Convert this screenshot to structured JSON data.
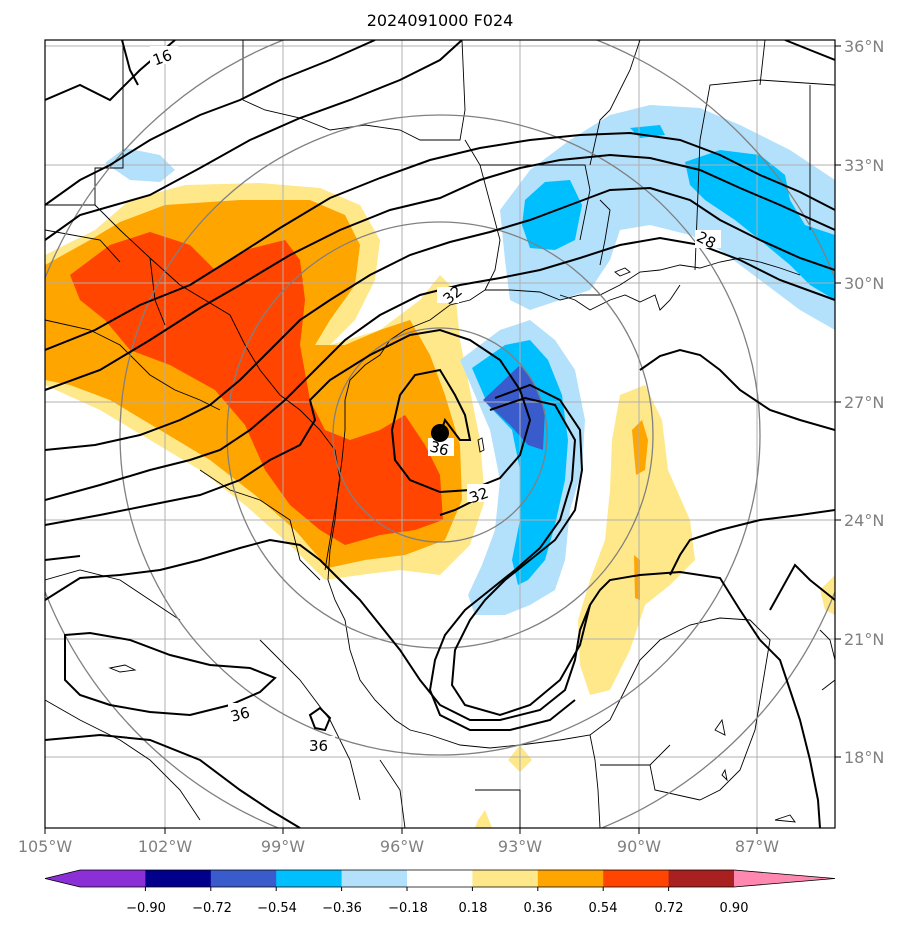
{
  "map": {
    "title": "2024091000 F024",
    "lon_labels": [
      "105°W",
      "102°W",
      "99°W",
      "96°W",
      "93°W",
      "90°W",
      "87°W"
    ],
    "lat_labels": [
      "36°N",
      "33°N",
      "30°N",
      "27°N",
      "24°N",
      "21°N",
      "18°N"
    ],
    "contour_labels": [
      "16",
      "28",
      "32",
      "32",
      "36",
      "36",
      "36"
    ],
    "storm_center": {
      "lon": -94.9,
      "lat": 26.2
    },
    "colorbar": {
      "ticks": [
        "−0.90",
        "−0.72",
        "−0.54",
        "−0.36",
        "−0.18",
        "0.18",
        "0.36",
        "0.54",
        "0.72",
        "0.90"
      ],
      "colors": [
        "#8b2fd6",
        "#00008b",
        "#3a5bcc",
        "#00bfff",
        "#b3e0fb",
        "#ffffff",
        "#ffe88a",
        "#ffa500",
        "#ff4500",
        "#a8201f",
        "#ff88b0"
      ]
    },
    "colors": {
      "grid": "#b0b0b0",
      "range_ring": "#808080",
      "contour": "#000000",
      "coast": "#000000"
    }
  }
}
